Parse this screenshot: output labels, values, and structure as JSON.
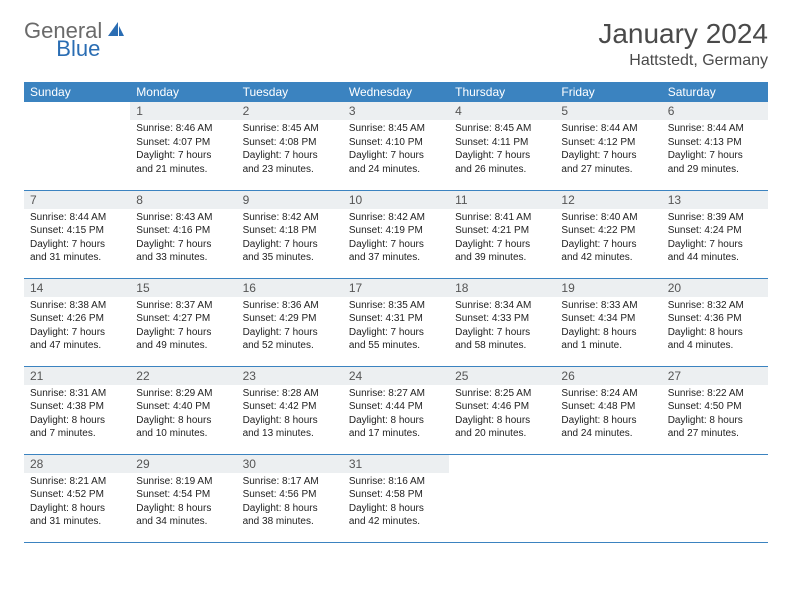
{
  "logo": {
    "gray": "General",
    "blue": "Blue"
  },
  "title": "January 2024",
  "location": "Hattstedt, Germany",
  "colors": {
    "header_bg": "#3b83c0",
    "header_fg": "#ffffff",
    "daynum_bg": "#eceff1",
    "row_border": "#3b83c0",
    "logo_gray": "#6a6a6a",
    "logo_blue": "#2a6db3",
    "page_bg": "#ffffff"
  },
  "weekdays": [
    "Sunday",
    "Monday",
    "Tuesday",
    "Wednesday",
    "Thursday",
    "Friday",
    "Saturday"
  ],
  "weeks": [
    [
      null,
      {
        "n": "1",
        "sr": "8:46 AM",
        "ss": "4:07 PM",
        "dl": "7 hours and 21 minutes."
      },
      {
        "n": "2",
        "sr": "8:45 AM",
        "ss": "4:08 PM",
        "dl": "7 hours and 23 minutes."
      },
      {
        "n": "3",
        "sr": "8:45 AM",
        "ss": "4:10 PM",
        "dl": "7 hours and 24 minutes."
      },
      {
        "n": "4",
        "sr": "8:45 AM",
        "ss": "4:11 PM",
        "dl": "7 hours and 26 minutes."
      },
      {
        "n": "5",
        "sr": "8:44 AM",
        "ss": "4:12 PM",
        "dl": "7 hours and 27 minutes."
      },
      {
        "n": "6",
        "sr": "8:44 AM",
        "ss": "4:13 PM",
        "dl": "7 hours and 29 minutes."
      }
    ],
    [
      {
        "n": "7",
        "sr": "8:44 AM",
        "ss": "4:15 PM",
        "dl": "7 hours and 31 minutes."
      },
      {
        "n": "8",
        "sr": "8:43 AM",
        "ss": "4:16 PM",
        "dl": "7 hours and 33 minutes."
      },
      {
        "n": "9",
        "sr": "8:42 AM",
        "ss": "4:18 PM",
        "dl": "7 hours and 35 minutes."
      },
      {
        "n": "10",
        "sr": "8:42 AM",
        "ss": "4:19 PM",
        "dl": "7 hours and 37 minutes."
      },
      {
        "n": "11",
        "sr": "8:41 AM",
        "ss": "4:21 PM",
        "dl": "7 hours and 39 minutes."
      },
      {
        "n": "12",
        "sr": "8:40 AM",
        "ss": "4:22 PM",
        "dl": "7 hours and 42 minutes."
      },
      {
        "n": "13",
        "sr": "8:39 AM",
        "ss": "4:24 PM",
        "dl": "7 hours and 44 minutes."
      }
    ],
    [
      {
        "n": "14",
        "sr": "8:38 AM",
        "ss": "4:26 PM",
        "dl": "7 hours and 47 minutes."
      },
      {
        "n": "15",
        "sr": "8:37 AM",
        "ss": "4:27 PM",
        "dl": "7 hours and 49 minutes."
      },
      {
        "n": "16",
        "sr": "8:36 AM",
        "ss": "4:29 PM",
        "dl": "7 hours and 52 minutes."
      },
      {
        "n": "17",
        "sr": "8:35 AM",
        "ss": "4:31 PM",
        "dl": "7 hours and 55 minutes."
      },
      {
        "n": "18",
        "sr": "8:34 AM",
        "ss": "4:33 PM",
        "dl": "7 hours and 58 minutes."
      },
      {
        "n": "19",
        "sr": "8:33 AM",
        "ss": "4:34 PM",
        "dl": "8 hours and 1 minute."
      },
      {
        "n": "20",
        "sr": "8:32 AM",
        "ss": "4:36 PM",
        "dl": "8 hours and 4 minutes."
      }
    ],
    [
      {
        "n": "21",
        "sr": "8:31 AM",
        "ss": "4:38 PM",
        "dl": "8 hours and 7 minutes."
      },
      {
        "n": "22",
        "sr": "8:29 AM",
        "ss": "4:40 PM",
        "dl": "8 hours and 10 minutes."
      },
      {
        "n": "23",
        "sr": "8:28 AM",
        "ss": "4:42 PM",
        "dl": "8 hours and 13 minutes."
      },
      {
        "n": "24",
        "sr": "8:27 AM",
        "ss": "4:44 PM",
        "dl": "8 hours and 17 minutes."
      },
      {
        "n": "25",
        "sr": "8:25 AM",
        "ss": "4:46 PM",
        "dl": "8 hours and 20 minutes."
      },
      {
        "n": "26",
        "sr": "8:24 AM",
        "ss": "4:48 PM",
        "dl": "8 hours and 24 minutes."
      },
      {
        "n": "27",
        "sr": "8:22 AM",
        "ss": "4:50 PM",
        "dl": "8 hours and 27 minutes."
      }
    ],
    [
      {
        "n": "28",
        "sr": "8:21 AM",
        "ss": "4:52 PM",
        "dl": "8 hours and 31 minutes."
      },
      {
        "n": "29",
        "sr": "8:19 AM",
        "ss": "4:54 PM",
        "dl": "8 hours and 34 minutes."
      },
      {
        "n": "30",
        "sr": "8:17 AM",
        "ss": "4:56 PM",
        "dl": "8 hours and 38 minutes."
      },
      {
        "n": "31",
        "sr": "8:16 AM",
        "ss": "4:58 PM",
        "dl": "8 hours and 42 minutes."
      },
      null,
      null,
      null
    ]
  ],
  "labels": {
    "sunrise": "Sunrise:",
    "sunset": "Sunset:",
    "daylight": "Daylight:"
  }
}
